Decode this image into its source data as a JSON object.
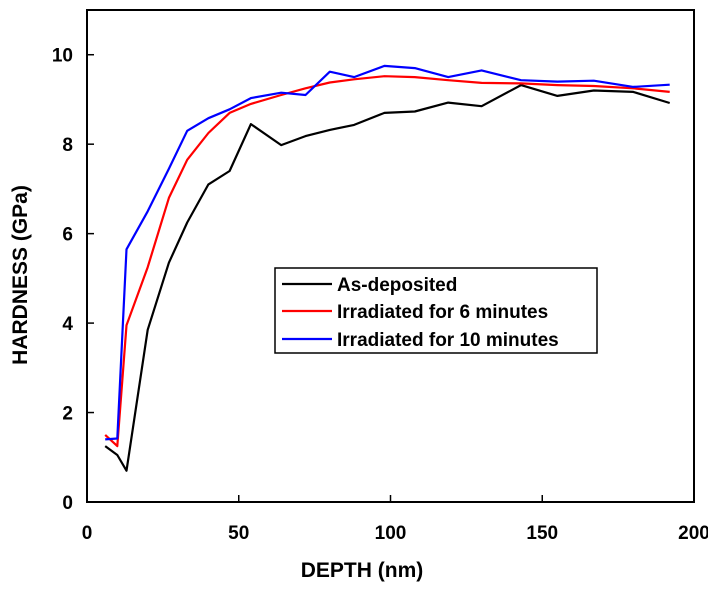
{
  "chart_data": {
    "type": "line",
    "title": "",
    "xlabel": "DEPTH (nm)",
    "ylabel": "HARDNESS (GPa)",
    "xlim": [
      0,
      200
    ],
    "ylim": [
      0,
      11
    ],
    "xticks": [
      0,
      50,
      100,
      150,
      200
    ],
    "yticks": [
      0,
      2,
      4,
      6,
      8,
      10
    ],
    "grid": false,
    "legend_position": "center-right",
    "series": [
      {
        "name": "As-deposited",
        "color": "#000000",
        "x": [
          6,
          10,
          13,
          20,
          27,
          33,
          40,
          47,
          54,
          64,
          72,
          80,
          88,
          98,
          108,
          119,
          130,
          143,
          155,
          167,
          180,
          192
        ],
        "y": [
          1.25,
          1.05,
          0.7,
          3.85,
          5.35,
          6.25,
          7.1,
          7.4,
          8.45,
          7.98,
          8.18,
          8.32,
          8.43,
          8.7,
          8.73,
          8.93,
          8.85,
          9.32,
          9.08,
          9.2,
          9.17,
          8.92
        ]
      },
      {
        "name": "Irradiated for 6 minutes",
        "color": "#ff0000",
        "x": [
          6,
          10,
          13,
          20,
          27,
          33,
          40,
          47,
          54,
          64,
          72,
          80,
          88,
          98,
          108,
          119,
          130,
          143,
          155,
          167,
          180,
          192
        ],
        "y": [
          1.5,
          1.25,
          3.95,
          5.25,
          6.8,
          7.65,
          8.25,
          8.7,
          8.9,
          9.1,
          9.25,
          9.38,
          9.45,
          9.52,
          9.5,
          9.43,
          9.37,
          9.36,
          9.32,
          9.3,
          9.25,
          9.17
        ]
      },
      {
        "name": "Irradiated for 10 minutes",
        "color": "#0000ff",
        "x": [
          6,
          10,
          13,
          20,
          27,
          33,
          40,
          47,
          54,
          64,
          72,
          80,
          88,
          98,
          108,
          119,
          130,
          143,
          155,
          167,
          180,
          192
        ],
        "y": [
          1.4,
          1.42,
          5.65,
          6.5,
          7.45,
          8.3,
          8.58,
          8.78,
          9.03,
          9.15,
          9.1,
          9.62,
          9.5,
          9.75,
          9.7,
          9.5,
          9.65,
          9.43,
          9.4,
          9.42,
          9.28,
          9.33
        ]
      }
    ]
  }
}
